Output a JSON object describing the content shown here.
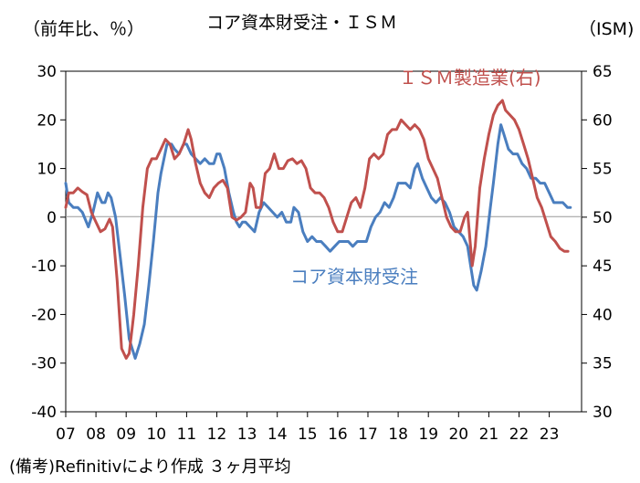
{
  "chart_data": {
    "type": "line",
    "title": "コア資本財受注・ＩＳＭ",
    "left_axis_label": "（前年比、％）",
    "right_axis_label": "（ISM)",
    "left_ylim": [
      -40,
      30
    ],
    "right_ylim": [
      30,
      65
    ],
    "left_ticks": [
      "30",
      "20",
      "10",
      "0",
      "-10",
      "-20",
      "-30",
      "-40"
    ],
    "right_ticks": [
      "65",
      "60",
      "55",
      "50",
      "45",
      "40",
      "35",
      "30"
    ],
    "xlim": [
      2007,
      2023.9
    ],
    "x_ticks": [
      "07",
      "08",
      "09",
      "10",
      "11",
      "12",
      "13",
      "14",
      "15",
      "16",
      "17",
      "18",
      "19",
      "20",
      "21",
      "22",
      "23"
    ],
    "grid": false,
    "colors": {
      "core": "#4a7ebf",
      "ism": "#c0504d"
    },
    "series": [
      {
        "name": "コア資本財受注",
        "axis": "left",
        "color": "#4a7ebf",
        "points": [
          [
            2007.0,
            7
          ],
          [
            2007.1,
            3
          ],
          [
            2007.25,
            2
          ],
          [
            2007.4,
            2
          ],
          [
            2007.55,
            1
          ],
          [
            2007.75,
            -2
          ],
          [
            2007.9,
            1
          ],
          [
            2008.05,
            5
          ],
          [
            2008.2,
            3
          ],
          [
            2008.3,
            3
          ],
          [
            2008.4,
            5
          ],
          [
            2008.5,
            4
          ],
          [
            2008.65,
            0
          ],
          [
            2008.8,
            -8
          ],
          [
            2008.95,
            -16
          ],
          [
            2009.1,
            -25
          ],
          [
            2009.3,
            -29
          ],
          [
            2009.45,
            -26
          ],
          [
            2009.6,
            -22
          ],
          [
            2009.75,
            -14
          ],
          [
            2009.9,
            -5
          ],
          [
            2010.05,
            5
          ],
          [
            2010.15,
            9
          ],
          [
            2010.25,
            12
          ],
          [
            2010.35,
            15
          ],
          [
            2010.5,
            15
          ],
          [
            2010.6,
            14
          ],
          [
            2010.75,
            13
          ],
          [
            2010.9,
            15
          ],
          [
            2011.0,
            15
          ],
          [
            2011.15,
            13
          ],
          [
            2011.3,
            12
          ],
          [
            2011.45,
            11
          ],
          [
            2011.6,
            12
          ],
          [
            2011.75,
            11
          ],
          [
            2011.9,
            11
          ],
          [
            2012.0,
            13
          ],
          [
            2012.1,
            13
          ],
          [
            2012.25,
            10
          ],
          [
            2012.4,
            5
          ],
          [
            2012.55,
            1
          ],
          [
            2012.65,
            -1
          ],
          [
            2012.75,
            -2
          ],
          [
            2012.85,
            -1
          ],
          [
            2012.95,
            -1
          ],
          [
            2013.1,
            -2
          ],
          [
            2013.25,
            -3
          ],
          [
            2013.4,
            1
          ],
          [
            2013.55,
            3
          ],
          [
            2013.7,
            2
          ],
          [
            2013.85,
            1
          ],
          [
            2014.0,
            0
          ],
          [
            2014.15,
            1
          ],
          [
            2014.3,
            -1
          ],
          [
            2014.45,
            -1
          ],
          [
            2014.55,
            2
          ],
          [
            2014.7,
            1
          ],
          [
            2014.85,
            -3
          ],
          [
            2015.0,
            -5
          ],
          [
            2015.15,
            -4
          ],
          [
            2015.3,
            -5
          ],
          [
            2015.45,
            -5
          ],
          [
            2015.6,
            -6
          ],
          [
            2015.75,
            -7
          ],
          [
            2015.9,
            -6
          ],
          [
            2016.05,
            -5
          ],
          [
            2016.2,
            -5
          ],
          [
            2016.35,
            -5
          ],
          [
            2016.5,
            -6
          ],
          [
            2016.65,
            -5
          ],
          [
            2016.8,
            -5
          ],
          [
            2016.95,
            -5
          ],
          [
            2017.1,
            -2
          ],
          [
            2017.25,
            0
          ],
          [
            2017.4,
            1
          ],
          [
            2017.55,
            3
          ],
          [
            2017.7,
            2
          ],
          [
            2017.85,
            4
          ],
          [
            2018.0,
            7
          ],
          [
            2018.1,
            7
          ],
          [
            2018.25,
            7
          ],
          [
            2018.4,
            6
          ],
          [
            2018.55,
            10
          ],
          [
            2018.65,
            11
          ],
          [
            2018.8,
            8
          ],
          [
            2018.95,
            6
          ],
          [
            2019.1,
            4
          ],
          [
            2019.25,
            3
          ],
          [
            2019.4,
            4
          ],
          [
            2019.55,
            3
          ],
          [
            2019.7,
            1
          ],
          [
            2019.85,
            -2
          ],
          [
            2020.0,
            -3
          ],
          [
            2020.15,
            -4
          ],
          [
            2020.3,
            -6
          ],
          [
            2020.4,
            -10
          ],
          [
            2020.5,
            -14
          ],
          [
            2020.6,
            -15
          ],
          [
            2020.75,
            -11
          ],
          [
            2020.9,
            -6
          ],
          [
            2021.05,
            2
          ],
          [
            2021.15,
            7
          ],
          [
            2021.3,
            15
          ],
          [
            2021.4,
            19
          ],
          [
            2021.5,
            17
          ],
          [
            2021.65,
            14
          ],
          [
            2021.8,
            13
          ],
          [
            2021.95,
            13
          ],
          [
            2022.1,
            11
          ],
          [
            2022.25,
            10
          ],
          [
            2022.4,
            8
          ],
          [
            2022.55,
            8
          ],
          [
            2022.7,
            7
          ],
          [
            2022.85,
            7
          ],
          [
            2023.0,
            5
          ],
          [
            2023.15,
            3
          ],
          [
            2023.3,
            3
          ],
          [
            2023.45,
            3
          ],
          [
            2023.6,
            2
          ],
          [
            2023.7,
            2
          ]
        ]
      },
      {
        "name": "ＩＳＭ製造業(右)",
        "axis": "right",
        "color": "#c0504d",
        "points": [
          [
            2007.0,
            51
          ],
          [
            2007.1,
            52.5
          ],
          [
            2007.25,
            52.5
          ],
          [
            2007.4,
            53
          ],
          [
            2007.55,
            52.6
          ],
          [
            2007.7,
            52.3
          ],
          [
            2007.85,
            50.5
          ],
          [
            2008.0,
            49.5
          ],
          [
            2008.15,
            48.5
          ],
          [
            2008.3,
            48.8
          ],
          [
            2008.45,
            49.8
          ],
          [
            2008.55,
            49
          ],
          [
            2008.7,
            43.5
          ],
          [
            2008.85,
            36.5
          ],
          [
            2009.0,
            35.5
          ],
          [
            2009.1,
            36
          ],
          [
            2009.25,
            40
          ],
          [
            2009.4,
            45
          ],
          [
            2009.55,
            51
          ],
          [
            2009.7,
            55
          ],
          [
            2009.85,
            56
          ],
          [
            2010.0,
            56
          ],
          [
            2010.15,
            57
          ],
          [
            2010.3,
            58
          ],
          [
            2010.45,
            57.5
          ],
          [
            2010.6,
            56
          ],
          [
            2010.75,
            56.5
          ],
          [
            2010.9,
            57.5
          ],
          [
            2011.05,
            59
          ],
          [
            2011.15,
            58
          ],
          [
            2011.3,
            55.5
          ],
          [
            2011.45,
            53.5
          ],
          [
            2011.6,
            52.5
          ],
          [
            2011.75,
            52
          ],
          [
            2011.9,
            53
          ],
          [
            2012.05,
            53.5
          ],
          [
            2012.2,
            53.8
          ],
          [
            2012.35,
            53
          ],
          [
            2012.5,
            50
          ],
          [
            2012.65,
            49.7
          ],
          [
            2012.8,
            50
          ],
          [
            2012.95,
            50.5
          ],
          [
            2013.1,
            53.5
          ],
          [
            2013.2,
            53
          ],
          [
            2013.3,
            51
          ],
          [
            2013.45,
            51
          ],
          [
            2013.6,
            54.5
          ],
          [
            2013.75,
            55
          ],
          [
            2013.9,
            56.5
          ],
          [
            2014.05,
            55
          ],
          [
            2014.2,
            55
          ],
          [
            2014.35,
            55.8
          ],
          [
            2014.5,
            56
          ],
          [
            2014.65,
            55.5
          ],
          [
            2014.8,
            55.8
          ],
          [
            2014.95,
            55
          ],
          [
            2015.1,
            53
          ],
          [
            2015.25,
            52.5
          ],
          [
            2015.4,
            52.5
          ],
          [
            2015.55,
            52
          ],
          [
            2015.7,
            51
          ],
          [
            2015.85,
            49.5
          ],
          [
            2016.0,
            48.5
          ],
          [
            2016.15,
            48.5
          ],
          [
            2016.3,
            50
          ],
          [
            2016.45,
            51.5
          ],
          [
            2016.6,
            52
          ],
          [
            2016.75,
            51
          ],
          [
            2016.9,
            53
          ],
          [
            2017.05,
            56
          ],
          [
            2017.2,
            56.5
          ],
          [
            2017.35,
            56
          ],
          [
            2017.5,
            56.5
          ],
          [
            2017.65,
            58.5
          ],
          [
            2017.8,
            59
          ],
          [
            2017.95,
            59
          ],
          [
            2018.1,
            60
          ],
          [
            2018.25,
            59.5
          ],
          [
            2018.4,
            59
          ],
          [
            2018.55,
            59.5
          ],
          [
            2018.7,
            59
          ],
          [
            2018.85,
            58
          ],
          [
            2019.0,
            56
          ],
          [
            2019.15,
            55
          ],
          [
            2019.3,
            54
          ],
          [
            2019.45,
            52
          ],
          [
            2019.6,
            50
          ],
          [
            2019.75,
            49
          ],
          [
            2019.9,
            48.5
          ],
          [
            2020.05,
            48.5
          ],
          [
            2020.2,
            50
          ],
          [
            2020.3,
            50.5
          ],
          [
            2020.45,
            45
          ],
          [
            2020.55,
            47
          ],
          [
            2020.7,
            53
          ],
          [
            2020.85,
            56
          ],
          [
            2021.0,
            58.5
          ],
          [
            2021.15,
            60.5
          ],
          [
            2021.3,
            61.5
          ],
          [
            2021.45,
            62
          ],
          [
            2021.55,
            61
          ],
          [
            2021.7,
            60.5
          ],
          [
            2021.85,
            60
          ],
          [
            2022.0,
            59
          ],
          [
            2022.15,
            57.5
          ],
          [
            2022.3,
            56
          ],
          [
            2022.45,
            54
          ],
          [
            2022.6,
            52
          ],
          [
            2022.75,
            51
          ],
          [
            2022.9,
            49.5
          ],
          [
            2023.05,
            48
          ],
          [
            2023.2,
            47.5
          ],
          [
            2023.35,
            46.8
          ],
          [
            2023.5,
            46.5
          ],
          [
            2023.62,
            46.5
          ]
        ]
      }
    ],
    "annotations": [
      {
        "text": "ＩＳＭ製造業(右)",
        "color": "#c0504d"
      },
      {
        "text": "コア資本財受注",
        "color": "#4a7ebf"
      }
    ]
  },
  "footer_note": "(備考)Refinitivにより作成 ３ヶ月平均"
}
